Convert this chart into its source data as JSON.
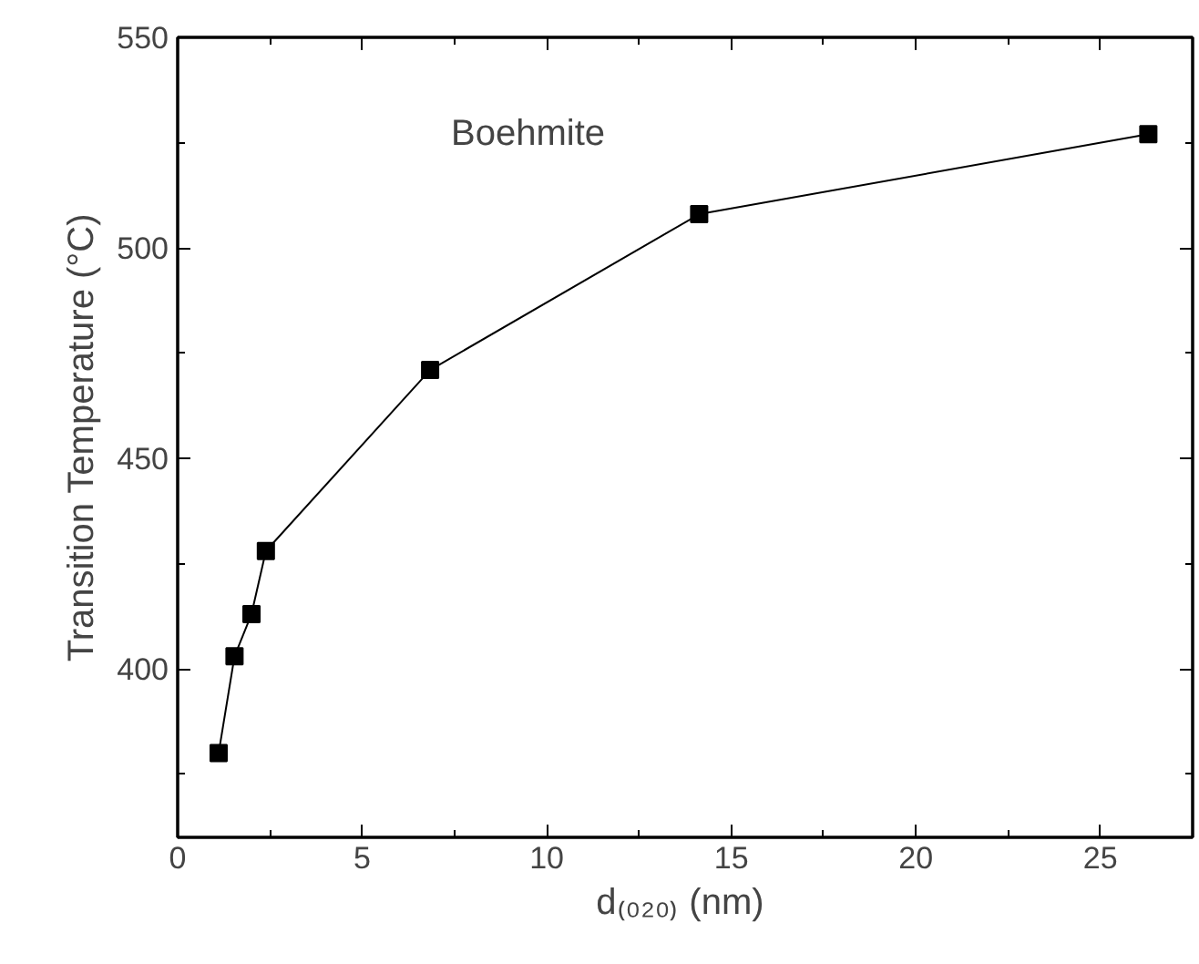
{
  "chart_data": {
    "type": "line",
    "xlabel": "d₍₀₂₀₎  (nm)",
    "ylabel": "Transition Temperature (°C)",
    "annotations": [
      "Boehmite"
    ],
    "x": [
      1.11,
      1.54,
      2.0,
      2.39,
      6.84,
      14.13,
      26.3
    ],
    "series": [
      {
        "color": "#000000",
        "values": [
          380,
          403,
          413,
          428,
          471,
          508,
          527
        ]
      }
    ],
    "xlim": [
      0,
      27.5
    ],
    "xticks": [
      0,
      5,
      10,
      15,
      20,
      25
    ],
    "ylim": [
      360,
      550
    ],
    "yticks": [
      400,
      450,
      500,
      550
    ],
    "marker": "square",
    "line_style": "solid"
  }
}
